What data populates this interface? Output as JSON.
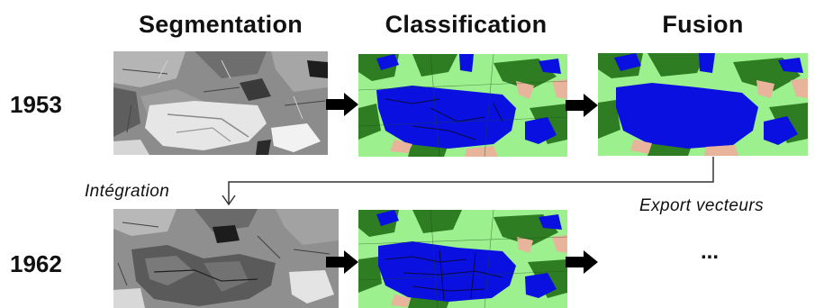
{
  "headers": {
    "segmentation": "Segmentation",
    "classification": "Classification",
    "fusion": "Fusion"
  },
  "rows": {
    "first_year": "1953",
    "second_year": "1962"
  },
  "labels": {
    "integration": "Intégration",
    "export": "Export vecteurs",
    "continuation": "..."
  },
  "legend_colors": {
    "water": "#0a10e0",
    "forest": "#2f7d23",
    "meadow": "#9cf08e",
    "bare_soil": "#e8b49c",
    "arrow": "#000000"
  },
  "icons": [
    "arrow-right-icon",
    "elbow-arrow-icon"
  ]
}
